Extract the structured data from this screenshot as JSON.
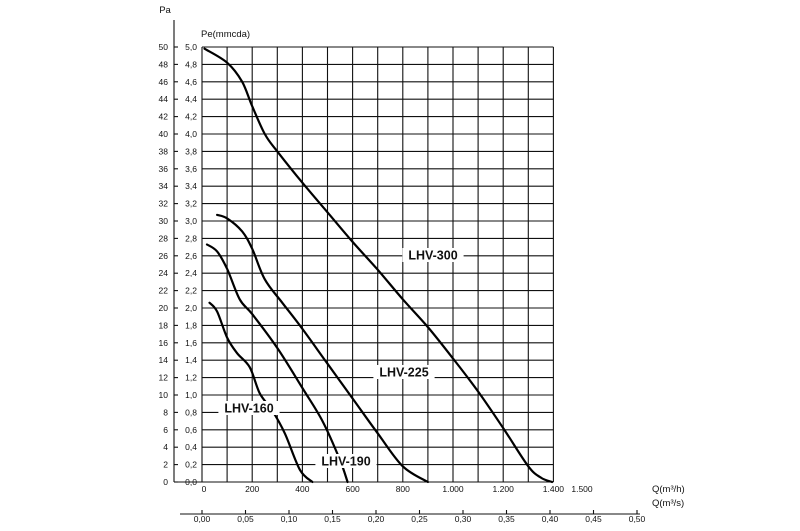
{
  "chart_data": {
    "type": "line",
    "grid": true,
    "pa_axis": {
      "label": "Pa",
      "ticks": [
        "0",
        "2",
        "4",
        "6",
        "8",
        "10",
        "12",
        "14",
        "16",
        "18",
        "20",
        "22",
        "24",
        "26",
        "28",
        "30",
        "32",
        "34",
        "36",
        "38",
        "40",
        "42",
        "44",
        "46",
        "48",
        "50"
      ]
    },
    "mmcda_axis": {
      "label": "Pe(mmcda)",
      "ticks": [
        "0,0",
        "0,2",
        "0,4",
        "0,6",
        "0,8",
        "1,0",
        "1,2",
        "1,4",
        "1,6",
        "1,8",
        "2,0",
        "2,2",
        "2,4",
        "2,6",
        "2,8",
        "3,0",
        "3,2",
        "3,4",
        "3,6",
        "3,8",
        "4,0",
        "4,2",
        "4,4",
        "4,6",
        "4,8",
        "5,0"
      ],
      "ylim": [
        0,
        5.0
      ]
    },
    "flow_axis_m3h": {
      "label": "Q(m³/h)",
      "ticks": [
        "0",
        "200",
        "400",
        "600",
        "800",
        "1.000",
        "1.200",
        "1.400",
        "1.500"
      ],
      "xlim": [
        0,
        1500
      ]
    },
    "flow_axis_m3s": {
      "label": "Q(m³/s)",
      "ticks": [
        "0,00",
        "0,05",
        "0,10",
        "0,15",
        "0,20",
        "0,25",
        "0,30",
        "0,35",
        "0,40",
        "0,45",
        "0,50"
      ],
      "xlim": [
        0,
        0.5
      ]
    },
    "series": [
      {
        "name": "LHV-300",
        "x": [
          10,
          100,
          160,
          200,
          250,
          300,
          400,
          500,
          600,
          700,
          800,
          900,
          1000,
          1100,
          1200,
          1300,
          1350,
          1395
        ],
        "y": [
          4.98,
          4.82,
          4.6,
          4.32,
          4.0,
          3.8,
          3.44,
          3.1,
          2.76,
          2.44,
          2.1,
          1.78,
          1.42,
          1.04,
          0.62,
          0.18,
          0.05,
          0.0
        ]
      },
      {
        "name": "LHV-225",
        "x": [
          60,
          100,
          160,
          200,
          250,
          320,
          400,
          500,
          600,
          700,
          800,
          900
        ],
        "y": [
          3.07,
          3.03,
          2.88,
          2.68,
          2.33,
          2.06,
          1.76,
          1.36,
          0.96,
          0.56,
          0.18,
          0.0
        ]
      },
      {
        "name": "LHV-190",
        "x": [
          20,
          60,
          100,
          150,
          200,
          300,
          400,
          480,
          550,
          580
        ],
        "y": [
          2.73,
          2.65,
          2.45,
          2.1,
          1.93,
          1.54,
          1.08,
          0.7,
          0.25,
          0.0
        ]
      },
      {
        "name": "LHV-160",
        "x": [
          30,
          60,
          100,
          140,
          190,
          230,
          280,
          330,
          390,
          440
        ],
        "y": [
          2.06,
          1.96,
          1.66,
          1.48,
          1.32,
          1.02,
          0.82,
          0.56,
          0.14,
          0.0
        ]
      }
    ],
    "labels": {
      "LHV-300": "LHV-300",
      "LHV-225": "LHV-225",
      "LHV-190": "LHV-190",
      "LHV-160": "LHV-160"
    }
  }
}
